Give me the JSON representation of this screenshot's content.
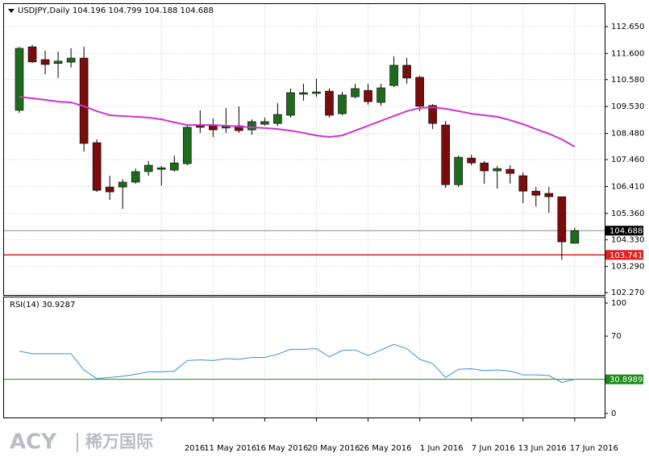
{
  "chart_data": [
    {
      "type": "candlestick",
      "title": "USDJPY,Daily 104.196 104.799 104.188 104.688",
      "categories": [
        null,
        null,
        null,
        null,
        null,
        null,
        null,
        null,
        null,
        null,
        null,
        "2016",
        null,
        null,
        null,
        "11 May 2016",
        null,
        null,
        null,
        "16 May 2016",
        null,
        null,
        null,
        "20 May 2016",
        null,
        null,
        null,
        "26 May 2016",
        null,
        null,
        null,
        "1 Jun 2016",
        null,
        null,
        null,
        "7 Jun 2016",
        null,
        null,
        null,
        "13 Jun 2016",
        null,
        null,
        null,
        "17 Jun 2016"
      ],
      "open": [
        109.38,
        111.86,
        111.36,
        111.21,
        111.26,
        111.42,
        108.12,
        106.39,
        106.39,
        106.58,
        106.99,
        107.08,
        107.05,
        107.3,
        108.81,
        108.81,
        108.69,
        108.78,
        108.62,
        108.84,
        108.87,
        109.19,
        110.01,
        110.04,
        110.13,
        109.25,
        109.91,
        110.16,
        109.69,
        110.35,
        111.14,
        110.67,
        109.57,
        108.81,
        106.48,
        107.52,
        107.33,
        107.02,
        107.08,
        106.83,
        106.23,
        106.14,
        106.01,
        104.196
      ],
      "high": [
        111.86,
        111.93,
        111.71,
        111.67,
        111.8,
        111.86,
        108.25,
        106.83,
        106.7,
        107.11,
        107.4,
        107.21,
        107.62,
        108.78,
        109.38,
        109.06,
        109.47,
        109.54,
        109.03,
        109.1,
        109.66,
        110.23,
        110.42,
        110.61,
        110.23,
        110.1,
        110.42,
        110.42,
        110.42,
        111.49,
        111.42,
        110.73,
        109.63,
        108.97,
        107.62,
        107.65,
        107.4,
        107.21,
        107.24,
        106.96,
        106.39,
        106.39,
        106.01,
        104.799
      ],
      "low": [
        109.28,
        111.23,
        110.79,
        110.64,
        111.05,
        107.77,
        106.2,
        105.89,
        105.54,
        106.52,
        106.83,
        106.45,
        106.99,
        107.24,
        108.5,
        108.34,
        108.5,
        108.5,
        108.43,
        108.78,
        108.78,
        109.1,
        109.76,
        109.91,
        109.1,
        109.19,
        109.85,
        109.6,
        109.57,
        110.29,
        110.42,
        109.35,
        108.65,
        106.36,
        106.39,
        107.24,
        106.52,
        106.33,
        106.52,
        105.76,
        105.63,
        105.38,
        103.56,
        104.188
      ],
      "close": [
        111.8,
        111.27,
        111.17,
        111.3,
        111.42,
        108.09,
        106.26,
        106.2,
        106.58,
        106.99,
        107.24,
        107.14,
        107.33,
        108.72,
        108.72,
        108.62,
        108.75,
        108.59,
        108.94,
        108.94,
        109.22,
        110.07,
        110.07,
        110.1,
        109.19,
        109.98,
        110.23,
        109.72,
        110.26,
        111.14,
        110.64,
        109.54,
        108.87,
        106.48,
        107.55,
        107.33,
        107.02,
        107.11,
        106.92,
        106.23,
        106.07,
        106.01,
        104.25,
        104.688
      ],
      "up_color": "#1e6b1e",
      "down_color": "#7a0c0c",
      "ma": {
        "color": "#cc33cc",
        "values": [
          109.91,
          109.85,
          109.79,
          109.72,
          109.69,
          109.54,
          109.35,
          109.19,
          109.16,
          109.13,
          109.1,
          109.03,
          108.91,
          108.81,
          108.81,
          108.81,
          108.78,
          108.75,
          108.72,
          108.69,
          108.65,
          108.59,
          108.5,
          108.4,
          108.34,
          108.4,
          108.59,
          108.78,
          108.97,
          109.16,
          109.35,
          109.47,
          109.5,
          109.44,
          109.35,
          109.25,
          109.19,
          109.13,
          109.0,
          108.84,
          108.65,
          108.47,
          108.25,
          107.96
        ]
      },
      "price_line": {
        "value": 104.688,
        "color": "#8a8a8a"
      },
      "level_line": {
        "value": 103.741,
        "color": "#e02020"
      },
      "ylim": [
        102.21,
        113.56
      ],
      "yticks": [
        {
          "value": 112.65,
          "label": "112.650"
        },
        {
          "value": 111.6,
          "label": "111.600"
        },
        {
          "value": 110.58,
          "label": "110.580"
        },
        {
          "value": 109.53,
          "label": "109.530"
        },
        {
          "value": 108.48,
          "label": "108.480"
        },
        {
          "value": 107.46,
          "label": "107.460"
        },
        {
          "value": 106.41,
          "label": "106.410"
        },
        {
          "value": 105.36,
          "label": "105.360"
        },
        {
          "value": 104.33,
          "label": "104.330"
        },
        {
          "value": 103.29,
          "label": "103.290"
        },
        {
          "value": 102.27,
          "label": "102.270"
        }
      ],
      "grid": true
    },
    {
      "type": "line",
      "title": "RSI(14) 30.9287",
      "values": [
        56.4,
        54.1,
        54.1,
        54.1,
        54.1,
        39.4,
        31.5,
        32.6,
        33.7,
        35.4,
        37.7,
        37.7,
        38.3,
        47.9,
        48.5,
        47.9,
        49.6,
        49.0,
        50.7,
        50.7,
        53.6,
        58.1,
        58.1,
        58.7,
        51.3,
        57.0,
        57.5,
        52.4,
        57.5,
        62.6,
        58.7,
        49.0,
        45.1,
        32.6,
        40.0,
        40.5,
        38.8,
        39.4,
        38.3,
        34.9,
        34.9,
        34.3,
        28.1,
        30.93
      ],
      "color": "#3b8fd4",
      "level_line": {
        "value": 30.8989,
        "color": "#1a8a1a"
      },
      "ylim": [
        0,
        100
      ],
      "yticks": [
        100,
        70,
        0
      ]
    }
  ],
  "watermark": {
    "brand": "ACY",
    "name": "稀万国际"
  }
}
